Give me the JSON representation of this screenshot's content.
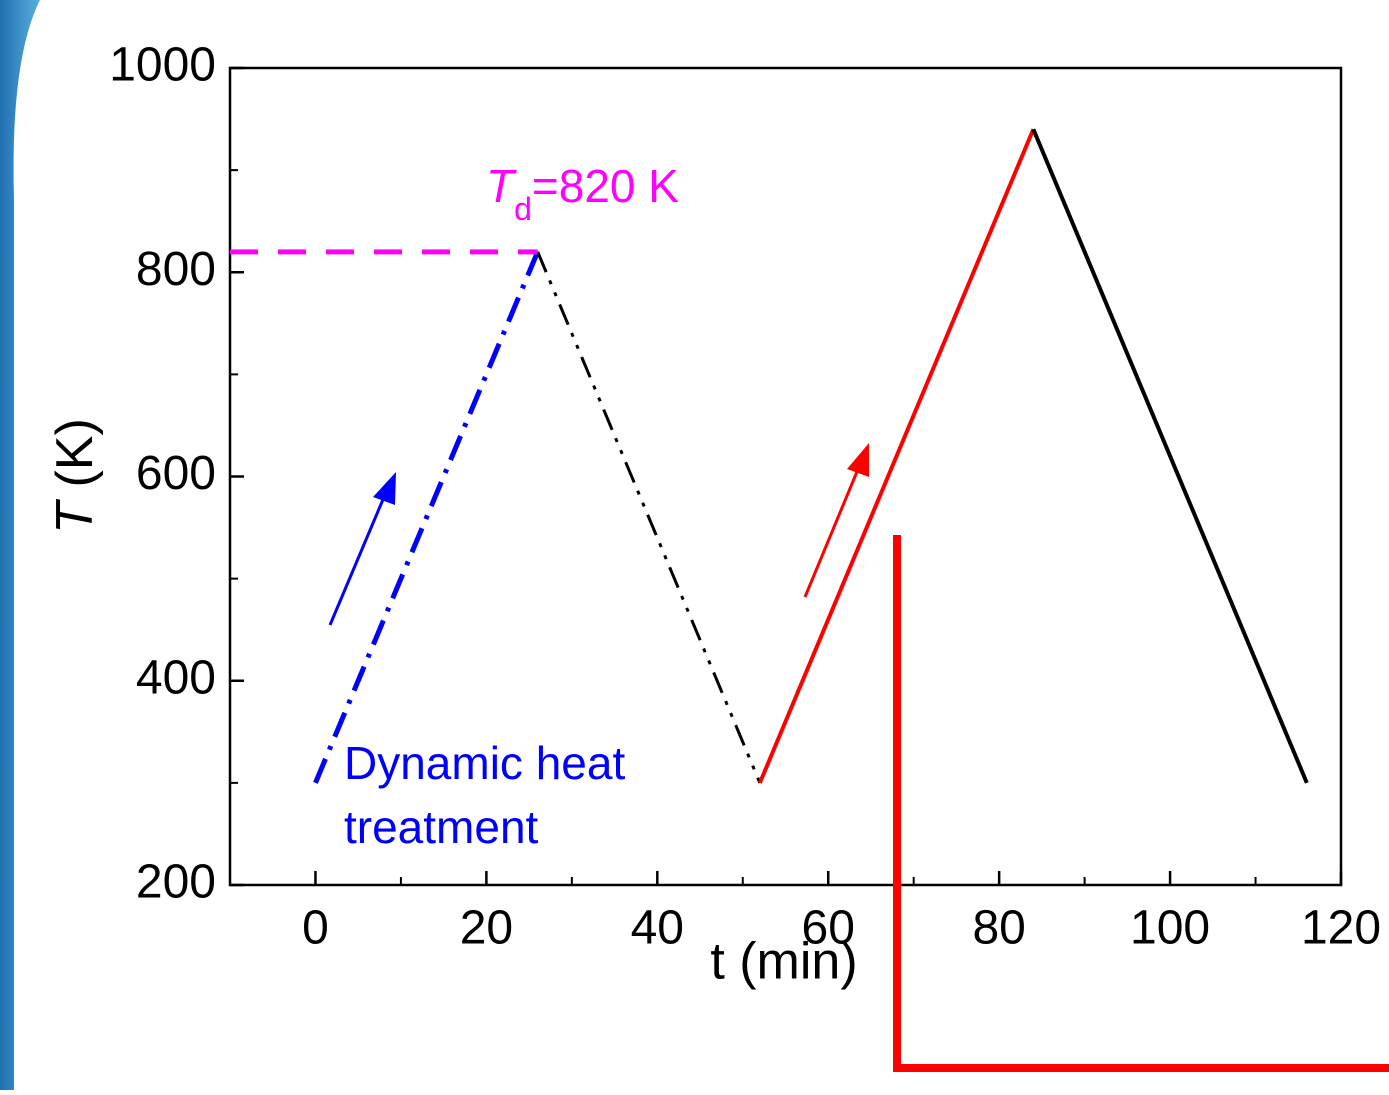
{
  "chart_data": {
    "type": "line",
    "x_label": "t (min)",
    "y_label_symbol": "T",
    "y_label_unit": "(K)",
    "xlim": [
      -10,
      120
    ],
    "xticks": [
      0,
      20,
      40,
      60,
      80,
      100,
      120
    ],
    "xminorticks": [
      10,
      30,
      50,
      70,
      90,
      110
    ],
    "ylim": [
      200,
      1000
    ],
    "yticks": [
      200,
      400,
      600,
      800,
      1000
    ],
    "yminorticks": [
      300,
      500,
      700,
      900
    ],
    "series": [
      {
        "color": "#0000ff",
        "style": "dashdot",
        "x": [
          0,
          26
        ],
        "y": [
          300,
          820
        ]
      },
      {
        "color": "#000000",
        "style": "dashdotdot",
        "x": [
          26,
          52
        ],
        "y": [
          820,
          300
        ]
      },
      {
        "color": "#ff0000",
        "style": "solid",
        "x": [
          52,
          84
        ],
        "y": [
          300,
          940
        ]
      },
      {
        "color": "#000000",
        "style": "solid",
        "x": [
          84,
          116
        ],
        "y": [
          940,
          300
        ]
      },
      {
        "color": "#ff00ff",
        "style": "dashed",
        "x": [
          -10,
          26
        ],
        "y": [
          820,
          820
        ]
      }
    ],
    "td_annotation": {
      "symbol": "T",
      "subscript": "d",
      "text": "=820 K",
      "color": "#ff00ff"
    },
    "treatment_annotation": {
      "lines": [
        "Dynamic heat",
        "treatment"
      ],
      "color": "#0000ff"
    }
  }
}
